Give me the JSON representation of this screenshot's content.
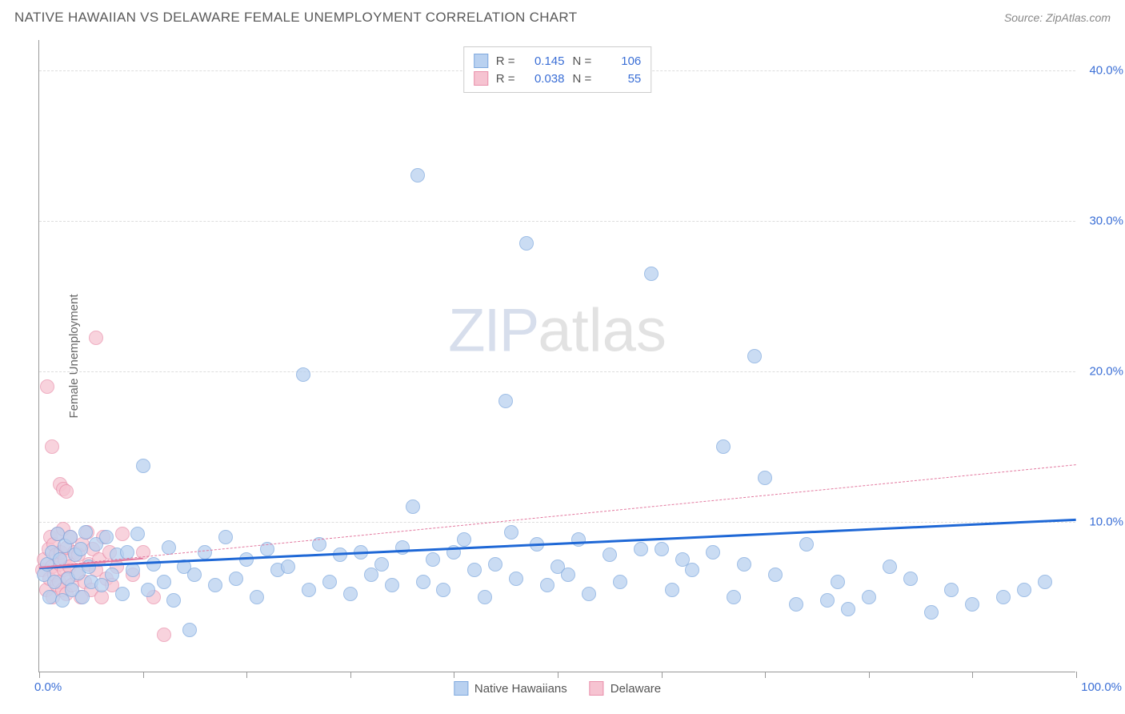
{
  "header": {
    "title": "NATIVE HAWAIIAN VS DELAWARE FEMALE UNEMPLOYMENT CORRELATION CHART",
    "source_label": "Source:",
    "source_value": "ZipAtlas.com"
  },
  "watermark": {
    "zip": "ZIP",
    "atlas": "atlas"
  },
  "chart": {
    "type": "scatter",
    "background_color": "#ffffff",
    "grid_color": "#dddddd",
    "axis_color": "#999999",
    "y_axis_title": "Female Unemployment",
    "xlim": [
      0,
      100
    ],
    "ylim": [
      0,
      42
    ],
    "x_ticks": [
      0,
      10,
      20,
      30,
      40,
      50,
      60,
      70,
      80,
      90,
      100
    ],
    "x_tick_labels": {
      "start": "0.0%",
      "end": "100.0%"
    },
    "y_gridlines": [
      10,
      20,
      30,
      40
    ],
    "y_tick_labels": [
      "10.0%",
      "20.0%",
      "30.0%",
      "40.0%"
    ],
    "tick_label_color": "#3b6fd6",
    "axis_title_color": "#666666",
    "label_fontsize": 15,
    "marker_radius": 9,
    "series": [
      {
        "name": "Native Hawaiians",
        "fill": "#b9d1f0",
        "stroke": "#7fa9de",
        "opacity": 0.75,
        "R": "0.145",
        "N": "106",
        "trend": {
          "x1": 0,
          "y1": 7.0,
          "x2": 100,
          "y2": 10.2,
          "color": "#1f68d6",
          "width": 3,
          "dash": false
        },
        "points": [
          [
            0.5,
            6.5
          ],
          [
            0.8,
            7.2
          ],
          [
            1.0,
            5.0
          ],
          [
            1.2,
            8.0
          ],
          [
            1.5,
            6.0
          ],
          [
            1.8,
            9.2
          ],
          [
            2.0,
            7.5
          ],
          [
            2.2,
            4.8
          ],
          [
            2.5,
            8.4
          ],
          [
            2.8,
            6.2
          ],
          [
            3.0,
            9.0
          ],
          [
            3.2,
            5.5
          ],
          [
            3.5,
            7.8
          ],
          [
            3.8,
            6.6
          ],
          [
            4.0,
            8.2
          ],
          [
            4.2,
            5.0
          ],
          [
            4.5,
            9.3
          ],
          [
            4.8,
            7.0
          ],
          [
            5.0,
            6.0
          ],
          [
            5.5,
            8.5
          ],
          [
            6.0,
            5.8
          ],
          [
            6.5,
            9.0
          ],
          [
            7.0,
            6.5
          ],
          [
            7.5,
            7.8
          ],
          [
            8.0,
            5.2
          ],
          [
            8.5,
            8.0
          ],
          [
            9.0,
            6.8
          ],
          [
            9.5,
            9.2
          ],
          [
            10.0,
            13.7
          ],
          [
            10.5,
            5.5
          ],
          [
            11.0,
            7.2
          ],
          [
            12.0,
            6.0
          ],
          [
            12.5,
            8.3
          ],
          [
            13.0,
            4.8
          ],
          [
            14.0,
            7.0
          ],
          [
            14.5,
            2.8
          ],
          [
            15.0,
            6.5
          ],
          [
            16.0,
            8.0
          ],
          [
            17.0,
            5.8
          ],
          [
            18.0,
            9.0
          ],
          [
            19.0,
            6.2
          ],
          [
            20.0,
            7.5
          ],
          [
            21.0,
            5.0
          ],
          [
            22.0,
            8.2
          ],
          [
            23.0,
            6.8
          ],
          [
            24.0,
            7.0
          ],
          [
            25.5,
            19.8
          ],
          [
            26.0,
            5.5
          ],
          [
            27.0,
            8.5
          ],
          [
            28.0,
            6.0
          ],
          [
            29.0,
            7.8
          ],
          [
            30.0,
            5.2
          ],
          [
            31.0,
            8.0
          ],
          [
            32.0,
            6.5
          ],
          [
            33.0,
            7.2
          ],
          [
            34.0,
            5.8
          ],
          [
            35.0,
            8.3
          ],
          [
            36.0,
            11.0
          ],
          [
            36.5,
            33.0
          ],
          [
            37.0,
            6.0
          ],
          [
            38.0,
            7.5
          ],
          [
            39.0,
            5.5
          ],
          [
            40.0,
            8.0
          ],
          [
            41.0,
            8.8
          ],
          [
            42.0,
            6.8
          ],
          [
            43.0,
            5.0
          ],
          [
            44.0,
            7.2
          ],
          [
            45.0,
            18.0
          ],
          [
            45.5,
            9.3
          ],
          [
            46.0,
            6.2
          ],
          [
            47.0,
            28.5
          ],
          [
            48.0,
            8.5
          ],
          [
            49.0,
            5.8
          ],
          [
            50.0,
            7.0
          ],
          [
            51.0,
            6.5
          ],
          [
            52.0,
            8.8
          ],
          [
            53.0,
            5.2
          ],
          [
            55.0,
            7.8
          ],
          [
            56.0,
            6.0
          ],
          [
            58.0,
            8.2
          ],
          [
            59.0,
            26.5
          ],
          [
            60.0,
            8.2
          ],
          [
            61.0,
            5.5
          ],
          [
            62.0,
            7.5
          ],
          [
            63.0,
            6.8
          ],
          [
            65.0,
            8.0
          ],
          [
            66.0,
            15.0
          ],
          [
            67.0,
            5.0
          ],
          [
            68.0,
            7.2
          ],
          [
            69.0,
            21.0
          ],
          [
            70.0,
            12.9
          ],
          [
            71.0,
            6.5
          ],
          [
            73.0,
            4.5
          ],
          [
            74.0,
            8.5
          ],
          [
            76.0,
            4.8
          ],
          [
            77.0,
            6.0
          ],
          [
            78.0,
            4.2
          ],
          [
            80.0,
            5.0
          ],
          [
            82.0,
            7.0
          ],
          [
            84.0,
            6.2
          ],
          [
            86.0,
            4.0
          ],
          [
            88.0,
            5.5
          ],
          [
            90.0,
            4.5
          ],
          [
            93.0,
            5.0
          ],
          [
            95.0,
            5.5
          ],
          [
            97.0,
            6.0
          ]
        ]
      },
      {
        "name": "Delaware",
        "fill": "#f6c3d1",
        "stroke": "#e990ab",
        "opacity": 0.72,
        "R": "0.038",
        "N": "55",
        "trend": {
          "x1": 0,
          "y1": 7.0,
          "x2": 100,
          "y2": 13.8,
          "color": "#e37aa0",
          "width": 1,
          "dash": true
        },
        "trend_solid": {
          "x1": 0,
          "y1": 7.0,
          "x2": 10,
          "y2": 7.6,
          "color": "#e37aa0",
          "width": 2
        },
        "points": [
          [
            0.3,
            6.8
          ],
          [
            0.5,
            7.5
          ],
          [
            0.7,
            5.5
          ],
          [
            0.9,
            8.2
          ],
          [
            1.0,
            6.2
          ],
          [
            1.1,
            9.0
          ],
          [
            1.2,
            7.0
          ],
          [
            1.3,
            5.0
          ],
          [
            1.4,
            8.5
          ],
          [
            1.5,
            6.5
          ],
          [
            1.6,
            7.8
          ],
          [
            1.7,
            5.8
          ],
          [
            1.8,
            9.2
          ],
          [
            1.9,
            6.0
          ],
          [
            2.0,
            7.2
          ],
          [
            2.1,
            8.0
          ],
          [
            2.2,
            5.5
          ],
          [
            2.3,
            9.5
          ],
          [
            2.4,
            6.8
          ],
          [
            2.5,
            7.5
          ],
          [
            2.6,
            5.2
          ],
          [
            2.7,
            8.3
          ],
          [
            2.8,
            6.3
          ],
          [
            2.9,
            7.0
          ],
          [
            3.0,
            9.0
          ],
          [
            3.2,
            5.8
          ],
          [
            3.4,
            8.0
          ],
          [
            3.6,
            6.5
          ],
          [
            3.8,
            7.8
          ],
          [
            4.0,
            5.0
          ],
          [
            4.2,
            8.5
          ],
          [
            4.4,
            6.0
          ],
          [
            4.6,
            9.3
          ],
          [
            4.8,
            7.2
          ],
          [
            5.0,
            5.5
          ],
          [
            5.2,
            8.2
          ],
          [
            5.5,
            6.8
          ],
          [
            5.8,
            7.5
          ],
          [
            6.0,
            5.0
          ],
          [
            6.2,
            9.0
          ],
          [
            6.5,
            6.2
          ],
          [
            6.8,
            8.0
          ],
          [
            7.0,
            5.8
          ],
          [
            0.8,
            19.0
          ],
          [
            1.2,
            15.0
          ],
          [
            2.0,
            12.5
          ],
          [
            2.3,
            12.2
          ],
          [
            2.6,
            12.0
          ],
          [
            5.5,
            22.2
          ],
          [
            7.5,
            7.0
          ],
          [
            8.0,
            9.2
          ],
          [
            9.0,
            6.5
          ],
          [
            10.0,
            8.0
          ],
          [
            11.0,
            5.0
          ],
          [
            12.0,
            2.5
          ]
        ]
      }
    ],
    "stats_box": {
      "label_R": "R =",
      "label_N": "N ="
    },
    "bottom_legend": {
      "items": [
        "Native Hawaiians",
        "Delaware"
      ]
    }
  }
}
